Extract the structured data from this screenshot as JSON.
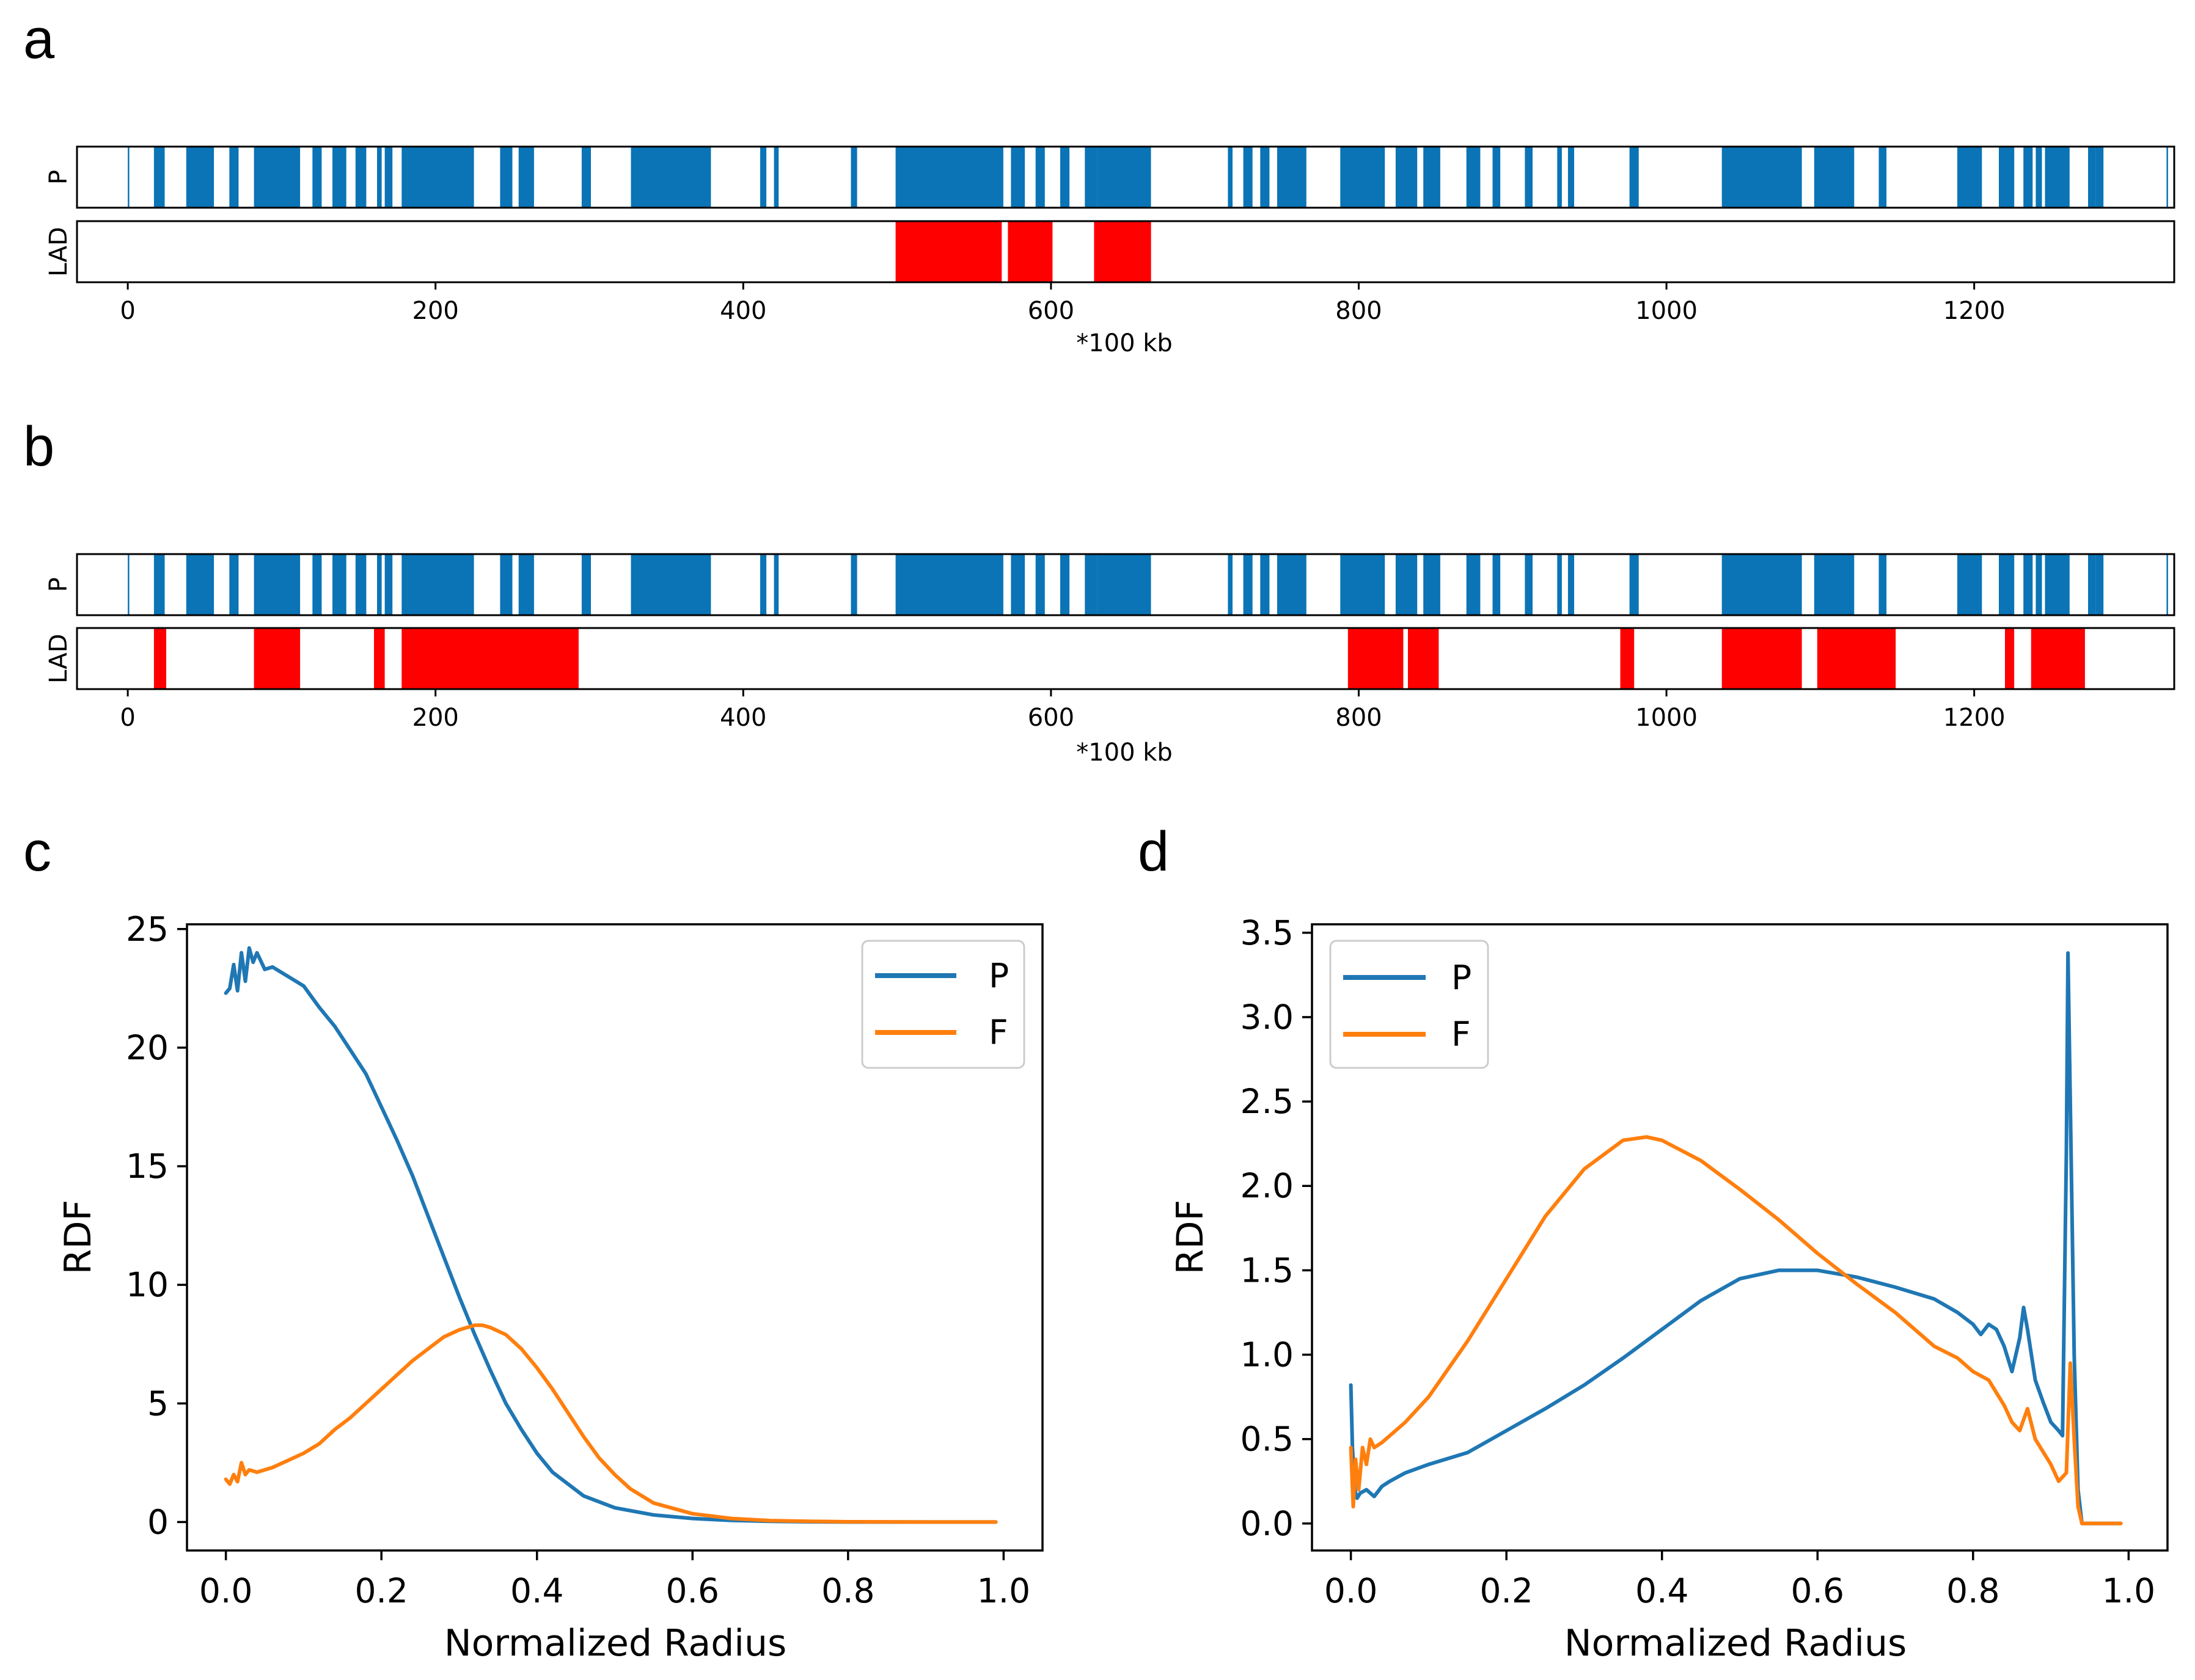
{
  "chart_data": [
    {
      "id": "a",
      "panel_label": "a",
      "type": "bar",
      "xlabel": "*100 kb",
      "xlim": [
        -33,
        1330
      ],
      "xticks": [
        0,
        200,
        400,
        600,
        800,
        1000,
        1200
      ],
      "tracks": [
        {
          "name": "P",
          "color": "#0a74b6",
          "intervals": [
            [
              0,
              1
            ],
            [
              17,
              24
            ],
            [
              38,
              56
            ],
            [
              66,
              72
            ],
            [
              82,
              112
            ],
            [
              120,
              126
            ],
            [
              133,
              142
            ],
            [
              148,
              155
            ],
            [
              162,
              165
            ],
            [
              167,
              172
            ],
            [
              178,
              225
            ],
            [
              242,
              250
            ],
            [
              254,
              264
            ],
            [
              295,
              301
            ],
            [
              327,
              379
            ],
            [
              411,
              415
            ],
            [
              420,
              423
            ],
            [
              470,
              474
            ],
            [
              499,
              569
            ],
            [
              574,
              583
            ],
            [
              590,
              596
            ],
            [
              606,
              612
            ],
            [
              622,
              630
            ],
            [
              630,
              665
            ],
            [
              715,
              718
            ],
            [
              725,
              731
            ],
            [
              736,
              742
            ],
            [
              747,
              766
            ],
            [
              788,
              804
            ],
            [
              804,
              817
            ],
            [
              824,
              838
            ],
            [
              842,
              853
            ],
            [
              870,
              879
            ],
            [
              887,
              892
            ],
            [
              908,
              913
            ],
            [
              929,
              932
            ],
            [
              936,
              940
            ],
            [
              976,
              982
            ],
            [
              1036,
              1088
            ],
            [
              1096,
              1122
            ],
            [
              1138,
              1143
            ],
            [
              1189,
              1205
            ],
            [
              1216,
              1226
            ],
            [
              1232,
              1238
            ],
            [
              1240,
              1244
            ],
            [
              1246,
              1262
            ],
            [
              1274,
              1279
            ],
            [
              1279,
              1284
            ],
            [
              1325,
              1326
            ]
          ]
        },
        {
          "name": "LAD",
          "color": "#ff0000",
          "intervals": [
            [
              499,
              568
            ],
            [
              572,
              601
            ],
            [
              628,
              665
            ]
          ]
        }
      ]
    },
    {
      "id": "b",
      "panel_label": "b",
      "type": "bar",
      "xlabel": "*100 kb",
      "xlim": [
        -33,
        1330
      ],
      "xticks": [
        0,
        200,
        400,
        600,
        800,
        1000,
        1200
      ],
      "tracks": [
        {
          "name": "P",
          "color": "#0a74b6",
          "intervals": [
            [
              0,
              1
            ],
            [
              17,
              24
            ],
            [
              38,
              56
            ],
            [
              66,
              72
            ],
            [
              82,
              112
            ],
            [
              120,
              126
            ],
            [
              133,
              142
            ],
            [
              148,
              155
            ],
            [
              162,
              165
            ],
            [
              167,
              172
            ],
            [
              178,
              225
            ],
            [
              242,
              250
            ],
            [
              254,
              264
            ],
            [
              295,
              301
            ],
            [
              327,
              379
            ],
            [
              411,
              415
            ],
            [
              420,
              423
            ],
            [
              470,
              474
            ],
            [
              499,
              569
            ],
            [
              574,
              583
            ],
            [
              590,
              596
            ],
            [
              606,
              612
            ],
            [
              622,
              630
            ],
            [
              630,
              665
            ],
            [
              715,
              718
            ],
            [
              725,
              731
            ],
            [
              736,
              742
            ],
            [
              747,
              766
            ],
            [
              788,
              804
            ],
            [
              804,
              817
            ],
            [
              824,
              838
            ],
            [
              842,
              853
            ],
            [
              870,
              879
            ],
            [
              887,
              892
            ],
            [
              908,
              913
            ],
            [
              929,
              932
            ],
            [
              936,
              940
            ],
            [
              976,
              982
            ],
            [
              1036,
              1088
            ],
            [
              1096,
              1122
            ],
            [
              1138,
              1143
            ],
            [
              1189,
              1205
            ],
            [
              1216,
              1226
            ],
            [
              1232,
              1238
            ],
            [
              1240,
              1244
            ],
            [
              1246,
              1262
            ],
            [
              1274,
              1279
            ],
            [
              1279,
              1284
            ],
            [
              1325,
              1326
            ]
          ]
        },
        {
          "name": "LAD",
          "color": "#ff0000",
          "intervals": [
            [
              17,
              25
            ],
            [
              82,
              112
            ],
            [
              160,
              167
            ],
            [
              178,
              293
            ],
            [
              793,
              829
            ],
            [
              832,
              852
            ],
            [
              970,
              979
            ],
            [
              1036,
              1088
            ],
            [
              1098,
              1149
            ],
            [
              1220,
              1226
            ],
            [
              1237,
              1272
            ]
          ]
        }
      ]
    },
    {
      "id": "c",
      "panel_label": "c",
      "type": "line",
      "xlabel": "Normalized Radius",
      "ylabel": "RDF",
      "xlim": [
        -0.05,
        1.05
      ],
      "ylim": [
        -1.2,
        25.2
      ],
      "xticks": [
        "0.0",
        "0.2",
        "0.4",
        "0.6",
        "0.8",
        "1.0"
      ],
      "yticks": [
        "0",
        "5",
        "10",
        "15",
        "20",
        "25"
      ],
      "legend_position": "top-right",
      "series": [
        {
          "name": "P",
          "color": "#1f77b4",
          "x": [
            0,
            0.005,
            0.01,
            0.015,
            0.02,
            0.025,
            0.03,
            0.035,
            0.04,
            0.05,
            0.06,
            0.08,
            0.1,
            0.12,
            0.14,
            0.16,
            0.18,
            0.2,
            0.22,
            0.24,
            0.26,
            0.28,
            0.3,
            0.32,
            0.34,
            0.36,
            0.38,
            0.4,
            0.42,
            0.44,
            0.46,
            0.5,
            0.55,
            0.6,
            0.65,
            0.7,
            0.75,
            0.8,
            0.85,
            0.9,
            0.95,
            0.99
          ],
          "y": [
            22.3,
            22.5,
            23.5,
            22.4,
            24.0,
            22.8,
            24.2,
            23.6,
            24.0,
            23.3,
            23.4,
            23.0,
            22.6,
            21.7,
            20.9,
            19.9,
            18.9,
            17.5,
            16.1,
            14.6,
            12.9,
            11.2,
            9.5,
            7.9,
            6.4,
            5.0,
            3.9,
            2.9,
            2.1,
            1.6,
            1.1,
            0.6,
            0.3,
            0.15,
            0.07,
            0.03,
            0.01,
            0.0,
            0.0,
            0.0,
            0.0,
            0.0
          ]
        },
        {
          "name": "F",
          "color": "#ff7f0e",
          "x": [
            0,
            0.005,
            0.01,
            0.015,
            0.02,
            0.025,
            0.03,
            0.04,
            0.06,
            0.08,
            0.1,
            0.12,
            0.14,
            0.16,
            0.18,
            0.2,
            0.22,
            0.24,
            0.26,
            0.28,
            0.3,
            0.32,
            0.33,
            0.34,
            0.36,
            0.38,
            0.4,
            0.42,
            0.44,
            0.46,
            0.48,
            0.5,
            0.52,
            0.55,
            0.6,
            0.65,
            0.7,
            0.75,
            0.8,
            0.9,
            0.99
          ],
          "y": [
            1.8,
            1.6,
            2.0,
            1.7,
            2.5,
            2.0,
            2.2,
            2.1,
            2.3,
            2.6,
            2.9,
            3.3,
            3.9,
            4.4,
            5.0,
            5.6,
            6.2,
            6.8,
            7.3,
            7.8,
            8.1,
            8.3,
            8.3,
            8.2,
            7.9,
            7.3,
            6.5,
            5.6,
            4.6,
            3.6,
            2.7,
            2.0,
            1.4,
            0.8,
            0.35,
            0.15,
            0.06,
            0.03,
            0.01,
            0.0,
            0.0
          ]
        }
      ]
    },
    {
      "id": "d",
      "panel_label": "d",
      "type": "line",
      "xlabel": "Normalized Radius",
      "ylabel": "RDF",
      "xlim": [
        -0.05,
        1.05
      ],
      "ylim": [
        -0.16,
        3.55
      ],
      "xticks": [
        "0.0",
        "0.2",
        "0.4",
        "0.6",
        "0.8",
        "1.0"
      ],
      "yticks": [
        "0.0",
        "0.5",
        "1.0",
        "1.5",
        "2.0",
        "2.5",
        "3.0",
        "3.5"
      ],
      "legend_position": "top-left",
      "series": [
        {
          "name": "P",
          "color": "#1f77b4",
          "x": [
            0,
            0.002,
            0.005,
            0.008,
            0.012,
            0.02,
            0.03,
            0.04,
            0.05,
            0.07,
            0.1,
            0.15,
            0.2,
            0.25,
            0.3,
            0.35,
            0.4,
            0.45,
            0.5,
            0.55,
            0.58,
            0.6,
            0.65,
            0.7,
            0.75,
            0.78,
            0.8,
            0.81,
            0.82,
            0.83,
            0.84,
            0.85,
            0.86,
            0.865,
            0.87,
            0.88,
            0.89,
            0.9,
            0.91,
            0.915,
            0.92,
            0.922,
            0.925,
            0.93,
            0.935,
            0.94,
            0.96,
            0.98,
            0.99
          ],
          "y": [
            0.82,
            0.45,
            0.2,
            0.15,
            0.18,
            0.2,
            0.16,
            0.22,
            0.25,
            0.3,
            0.35,
            0.42,
            0.55,
            0.68,
            0.82,
            0.98,
            1.15,
            1.32,
            1.45,
            1.5,
            1.5,
            1.5,
            1.46,
            1.4,
            1.33,
            1.25,
            1.18,
            1.12,
            1.18,
            1.15,
            1.05,
            0.9,
            1.1,
            1.28,
            1.15,
            0.85,
            0.72,
            0.6,
            0.55,
            0.52,
            2.2,
            3.38,
            2.5,
            1.0,
            0.2,
            0.0,
            0.0,
            0.0,
            0.0
          ]
        },
        {
          "name": "F",
          "color": "#ff7f0e",
          "x": [
            0,
            0.003,
            0.006,
            0.01,
            0.015,
            0.02,
            0.025,
            0.03,
            0.04,
            0.05,
            0.07,
            0.1,
            0.15,
            0.2,
            0.25,
            0.3,
            0.35,
            0.38,
            0.4,
            0.45,
            0.5,
            0.55,
            0.6,
            0.65,
            0.7,
            0.75,
            0.78,
            0.8,
            0.82,
            0.84,
            0.85,
            0.86,
            0.87,
            0.88,
            0.9,
            0.91,
            0.92,
            0.925,
            0.93,
            0.935,
            0.94,
            0.96,
            0.99
          ],
          "y": [
            0.45,
            0.1,
            0.38,
            0.2,
            0.45,
            0.35,
            0.5,
            0.45,
            0.48,
            0.52,
            0.6,
            0.75,
            1.08,
            1.45,
            1.82,
            2.1,
            2.27,
            2.29,
            2.27,
            2.15,
            1.98,
            1.8,
            1.6,
            1.42,
            1.25,
            1.05,
            0.98,
            0.9,
            0.85,
            0.7,
            0.6,
            0.55,
            0.68,
            0.5,
            0.35,
            0.25,
            0.3,
            0.95,
            0.5,
            0.1,
            0.0,
            0.0,
            0.0
          ]
        }
      ]
    }
  ]
}
